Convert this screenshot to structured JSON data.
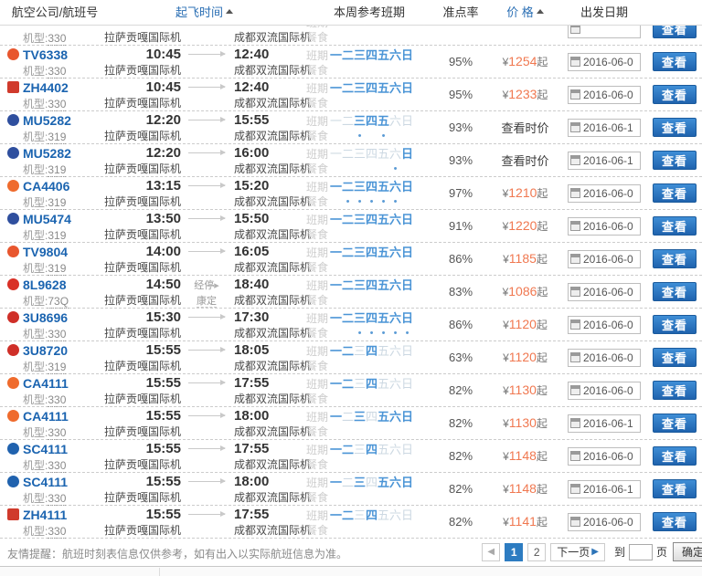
{
  "header": {
    "col_airline": "航空公司/航班号",
    "col_depart_time": "起飞时间",
    "col_schedule": "本周参考班期",
    "col_ontime": "准点率",
    "col_price": "价 格",
    "col_date": "出发日期"
  },
  "labels": {
    "model_prefix": "机型:",
    "schedule": "班期",
    "meal": "餐食",
    "view_button": "查看",
    "currency": "¥",
    "price_suffix": "起"
  },
  "day_chars": [
    "一",
    "二",
    "三",
    "四",
    "五",
    "六",
    "日"
  ],
  "colors": {
    "accent_blue": "#2b6fb4",
    "flight_link": "#1b64b0",
    "price_orange": "#f07850",
    "button_blue": "#2373c8",
    "day_active": "#4a94d6",
    "day_inactive": "#ccd8e2"
  },
  "partial_row": {
    "model": "330",
    "dep_airport": "拉萨贡嘎国际机",
    "arr_airport": "成都双流国际机"
  },
  "rows": [
    {
      "flight": "TV6338",
      "logo": {
        "shape": "circle",
        "color": "#e8562e"
      },
      "model": "330",
      "dep_time": "10:45",
      "arr_time": "12:40",
      "dep_airport": "拉萨贡嘎国际机",
      "arr_airport": "成都双流国际机",
      "active_days": [
        1,
        1,
        1,
        1,
        1,
        1,
        1
      ],
      "dots": [
        0,
        0,
        0,
        0,
        0,
        0,
        0
      ],
      "ontime": "95%",
      "price_amount": "1254",
      "date": "2016-06-0"
    },
    {
      "flight": "ZH4402",
      "logo": {
        "shape": "square",
        "color": "#d03a2c"
      },
      "model": "330",
      "dep_time": "10:45",
      "arr_time": "12:40",
      "dep_airport": "拉萨贡嘎国际机",
      "arr_airport": "成都双流国际机",
      "active_days": [
        1,
        1,
        1,
        1,
        1,
        1,
        1
      ],
      "dots": [
        0,
        0,
        0,
        0,
        0,
        0,
        0
      ],
      "ontime": "95%",
      "price_amount": "1233",
      "date": "2016-06-0"
    },
    {
      "flight": "MU5282",
      "logo": {
        "shape": "circle",
        "color": "#2f4f9e"
      },
      "model": "319",
      "dep_time": "12:20",
      "arr_time": "15:55",
      "dep_airport": "拉萨贡嘎国际机",
      "arr_airport": "成都双流国际机",
      "active_days": [
        0,
        0,
        1,
        1,
        1,
        0,
        0
      ],
      "dots": [
        0,
        0,
        1,
        0,
        1,
        0,
        0
      ],
      "ontime": "93%",
      "price_text": "查看时价",
      "date": "2016-06-1"
    },
    {
      "flight": "MU5282",
      "logo": {
        "shape": "circle",
        "color": "#2f4f9e"
      },
      "model": "319",
      "dep_time": "12:20",
      "arr_time": "16:00",
      "dep_airport": "拉萨贡嘎国际机",
      "arr_airport": "成都双流国际机",
      "active_days": [
        0,
        0,
        0,
        0,
        0,
        0,
        1
      ],
      "dots": [
        0,
        0,
        0,
        0,
        0,
        1,
        0
      ],
      "ontime": "93%",
      "price_text": "查看时价",
      "date": "2016-06-1"
    },
    {
      "flight": "CA4406",
      "logo": {
        "shape": "circle",
        "color": "#ef6b2d"
      },
      "model": "319",
      "dep_time": "13:15",
      "arr_time": "15:20",
      "dep_airport": "拉萨贡嘎国际机",
      "arr_airport": "成都双流国际机",
      "active_days": [
        1,
        1,
        1,
        1,
        1,
        1,
        1
      ],
      "dots": [
        0,
        1,
        1,
        1,
        1,
        1,
        0
      ],
      "ontime": "97%",
      "price_amount": "1210",
      "date": "2016-06-0"
    },
    {
      "flight": "MU5474",
      "logo": {
        "shape": "circle",
        "color": "#2f4f9e"
      },
      "model": "319",
      "dep_time": "13:50",
      "arr_time": "15:50",
      "dep_airport": "拉萨贡嘎国际机",
      "arr_airport": "成都双流国际机",
      "active_days": [
        1,
        1,
        1,
        1,
        1,
        1,
        1
      ],
      "dots": [
        0,
        0,
        0,
        0,
        0,
        0,
        0
      ],
      "ontime": "91%",
      "price_amount": "1220",
      "date": "2016-06-0"
    },
    {
      "flight": "TV9804",
      "logo": {
        "shape": "circle",
        "color": "#e8562e"
      },
      "model": "319",
      "dep_time": "14:00",
      "arr_time": "16:05",
      "dep_airport": "拉萨贡嘎国际机",
      "arr_airport": "成都双流国际机",
      "active_days": [
        1,
        1,
        1,
        1,
        1,
        1,
        1
      ],
      "dots": [
        0,
        0,
        0,
        0,
        0,
        0,
        0
      ],
      "ontime": "86%",
      "price_amount": "1185",
      "date": "2016-06-0"
    },
    {
      "flight": "8L9628",
      "logo": {
        "shape": "circle",
        "color": "#d93026"
      },
      "model": "73Q",
      "dep_time": "14:50",
      "arr_time": "18:40",
      "dep_airport": "拉萨贡嘎国际机",
      "arr_airport": "成都双流国际机",
      "stopover": {
        "label": "经停",
        "city": "康定"
      },
      "active_days": [
        1,
        1,
        1,
        1,
        1,
        1,
        1
      ],
      "dots": [
        0,
        0,
        0,
        0,
        0,
        0,
        0
      ],
      "ontime": "83%",
      "price_amount": "1086",
      "date": "2016-06-0"
    },
    {
      "flight": "3U8696",
      "logo": {
        "shape": "circle",
        "color": "#cf2f28"
      },
      "model": "330",
      "dep_time": "15:30",
      "arr_time": "17:30",
      "dep_airport": "拉萨贡嘎国际机",
      "arr_airport": "成都双流国际机",
      "active_days": [
        1,
        1,
        1,
        1,
        1,
        1,
        1
      ],
      "dots": [
        0,
        0,
        1,
        1,
        1,
        1,
        1
      ],
      "ontime": "86%",
      "price_amount": "1120",
      "date": "2016-06-0"
    },
    {
      "flight": "3U8720",
      "logo": {
        "shape": "circle",
        "color": "#cf2f28"
      },
      "model": "319",
      "dep_time": "15:55",
      "arr_time": "18:05",
      "dep_airport": "拉萨贡嘎国际机",
      "arr_airport": "成都双流国际机",
      "active_days": [
        1,
        1,
        0,
        1,
        0,
        0,
        0
      ],
      "dots": [
        0,
        0,
        0,
        0,
        0,
        0,
        0
      ],
      "ontime": "63%",
      "price_amount": "1120",
      "date": "2016-06-0"
    },
    {
      "flight": "CA4111",
      "logo": {
        "shape": "circle",
        "color": "#ef6b2d"
      },
      "model": "330",
      "dep_time": "15:55",
      "arr_time": "17:55",
      "dep_airport": "拉萨贡嘎国际机",
      "arr_airport": "成都双流国际机",
      "active_days": [
        1,
        1,
        0,
        1,
        0,
        0,
        0
      ],
      "dots": [
        0,
        0,
        0,
        0,
        0,
        0,
        0
      ],
      "ontime": "82%",
      "price_amount": "1130",
      "date": "2016-06-0"
    },
    {
      "flight": "CA4111",
      "logo": {
        "shape": "circle",
        "color": "#ef6b2d"
      },
      "model": "330",
      "dep_time": "15:55",
      "arr_time": "18:00",
      "dep_airport": "拉萨贡嘎国际机",
      "arr_airport": "成都双流国际机",
      "active_days": [
        1,
        0,
        1,
        0,
        1,
        1,
        1
      ],
      "dots": [
        0,
        0,
        0,
        0,
        0,
        0,
        0
      ],
      "ontime": "82%",
      "price_amount": "1130",
      "date": "2016-06-1"
    },
    {
      "flight": "SC4111",
      "logo": {
        "shape": "circle",
        "color": "#2062ae"
      },
      "model": "330",
      "dep_time": "15:55",
      "arr_time": "17:55",
      "dep_airport": "拉萨贡嘎国际机",
      "arr_airport": "成都双流国际机",
      "active_days": [
        1,
        1,
        0,
        1,
        0,
        0,
        0
      ],
      "dots": [
        0,
        0,
        0,
        0,
        0,
        0,
        0
      ],
      "ontime": "82%",
      "price_amount": "1148",
      "date": "2016-06-0"
    },
    {
      "flight": "SC4111",
      "logo": {
        "shape": "circle",
        "color": "#2062ae"
      },
      "model": "330",
      "dep_time": "15:55",
      "arr_time": "18:00",
      "dep_airport": "拉萨贡嘎国际机",
      "arr_airport": "成都双流国际机",
      "active_days": [
        1,
        0,
        1,
        0,
        1,
        1,
        1
      ],
      "dots": [
        0,
        0,
        0,
        0,
        0,
        0,
        0
      ],
      "ontime": "82%",
      "price_amount": "1148",
      "date": "2016-06-1"
    },
    {
      "flight": "ZH4111",
      "logo": {
        "shape": "square",
        "color": "#d03a2c"
      },
      "model": "330",
      "dep_time": "15:55",
      "arr_time": "17:55",
      "dep_airport": "拉萨贡嘎国际机",
      "arr_airport": "成都双流国际机",
      "active_days": [
        1,
        1,
        0,
        1,
        0,
        0,
        0
      ],
      "dots": [
        0,
        0,
        0,
        0,
        0,
        0,
        0
      ],
      "ontime": "82%",
      "price_amount": "1141",
      "date": "2016-06-0"
    }
  ],
  "footer": {
    "notice": "友情提醒：航班时刻表信息仅供参考，如有出入以实际航班信息为准。"
  },
  "pagination": {
    "prev_icon": "◀",
    "pages": [
      "1",
      "2"
    ],
    "active_page": "1",
    "next_label": "下一页",
    "next_icon": "▶",
    "goto_prefix": "到",
    "goto_suffix": "页",
    "confirm_label": "确定"
  }
}
